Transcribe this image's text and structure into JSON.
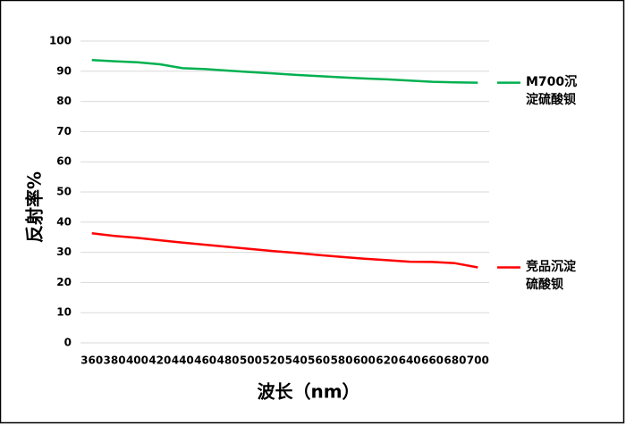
{
  "chart_data": {
    "type": "line",
    "xlabel": "波长（nm）",
    "ylabel": "反射率%",
    "x": [
      360,
      380,
      400,
      420,
      440,
      460,
      480,
      500,
      520,
      540,
      560,
      580,
      600,
      620,
      640,
      660,
      680,
      700
    ],
    "xlim": [
      350,
      710
    ],
    "xticks": [
      360,
      380,
      400,
      420,
      440,
      460,
      480,
      500,
      520,
      540,
      560,
      580,
      600,
      620,
      640,
      660,
      680,
      700
    ],
    "ylim": [
      0,
      100
    ],
    "yticks": [
      0,
      10,
      20,
      30,
      40,
      50,
      60,
      70,
      80,
      90,
      100
    ],
    "grid": true,
    "legend": "right",
    "series": [
      {
        "name": "M700沉淀硫酸钡",
        "color": "#00b050",
        "values": [
          93.7,
          93.3,
          93.0,
          92.3,
          91.0,
          90.7,
          90.2,
          89.7,
          89.3,
          88.8,
          88.4,
          88.0,
          87.6,
          87.3,
          86.9,
          86.5,
          86.3,
          86.2
        ]
      },
      {
        "name": "竞品沉淀硫酸钡",
        "color": "#ff0000",
        "values": [
          36.3,
          35.4,
          34.8,
          34.0,
          33.2,
          32.5,
          31.8,
          31.1,
          30.4,
          29.8,
          29.1,
          28.5,
          27.9,
          27.4,
          26.9,
          26.8,
          26.4,
          25.0
        ]
      }
    ]
  }
}
